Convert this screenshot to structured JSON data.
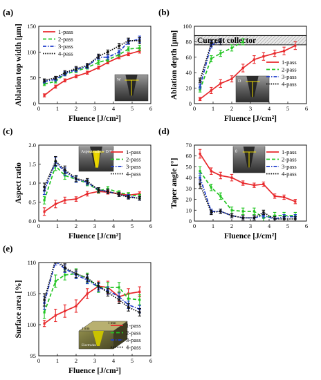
{
  "figure": {
    "panels": [
      {
        "key": "a",
        "label": "(a)"
      },
      {
        "key": "b",
        "label": "(b)"
      },
      {
        "key": "c",
        "label": "(c)"
      },
      {
        "key": "d",
        "label": "(d)"
      },
      {
        "key": "e",
        "label": "(e)"
      }
    ]
  },
  "colors": {
    "1-pass": "#e8282b",
    "2-pass": "#22c522",
    "3-pass": "#1f3ccc",
    "4-pass": "#111111"
  },
  "chart_data": [
    {
      "panel": "a",
      "label": "(a)",
      "type": "line",
      "xlabel": "Fluence [J/cm²]",
      "ylabel": "Ablation top width [μm]",
      "xlim": [
        0,
        6
      ],
      "ylim": [
        0,
        150
      ],
      "xticks": [
        0,
        1,
        2,
        3,
        4,
        5,
        6
      ],
      "yticks": [
        0,
        50,
        100,
        150
      ],
      "legend": "top-left",
      "grid": false,
      "inset": {
        "type": "micrograph",
        "annotation": "W"
      },
      "series": [
        {
          "name": "1-pass",
          "x": [
            0.3,
            0.9,
            1.4,
            2.0,
            2.6,
            3.2,
            3.7,
            4.3,
            4.8,
            5.4
          ],
          "y": [
            16,
            33,
            45,
            53,
            60,
            70,
            80,
            90,
            96,
            102
          ],
          "err": [
            3,
            3,
            3,
            3,
            3,
            3,
            3,
            3,
            3,
            4
          ]
        },
        {
          "name": "2-pass",
          "x": [
            0.3,
            0.9,
            1.4,
            2.0,
            2.6,
            3.2,
            3.7,
            4.3,
            4.8,
            5.4
          ],
          "y": [
            38,
            43,
            57,
            63,
            70,
            80,
            85,
            95,
            106,
            108
          ],
          "err": [
            3,
            3,
            3,
            3,
            3,
            4,
            4,
            4,
            4,
            5
          ]
        },
        {
          "name": "3-pass",
          "x": [
            0.3,
            0.9,
            1.4,
            2.0,
            2.6,
            3.2,
            3.7,
            4.3,
            4.8,
            5.4
          ],
          "y": [
            43,
            47,
            58,
            66,
            72,
            90,
            90,
            100,
            120,
            125
          ],
          "err": [
            3,
            3,
            4,
            4,
            4,
            4,
            4,
            4,
            5,
            6
          ]
        },
        {
          "name": "4-pass",
          "x": [
            0.3,
            0.9,
            1.4,
            2.0,
            2.6,
            3.2,
            3.7,
            4.3,
            4.8,
            5.4
          ],
          "y": [
            45,
            50,
            60,
            68,
            74,
            92,
            100,
            112,
            122,
            122
          ],
          "err": [
            3,
            3,
            4,
            4,
            4,
            4,
            4,
            5,
            5,
            6
          ]
        }
      ]
    },
    {
      "panel": "b",
      "label": "(b)",
      "type": "line",
      "xlabel": "Fluence [J/cm²]",
      "ylabel": "Ablation depth [μm]",
      "xlim": [
        0,
        6
      ],
      "ylim": [
        0,
        100
      ],
      "xticks": [
        0,
        1,
        2,
        3,
        4,
        5,
        6
      ],
      "yticks": [
        0,
        20,
        40,
        60,
        80,
        100
      ],
      "legend": "right",
      "grid": false,
      "annotation": {
        "text": "Current collector",
        "y_from": 76,
        "y_to": 88
      },
      "inset": {
        "type": "micrograph",
        "annotation": "D"
      },
      "series": [
        {
          "name": "1-pass",
          "x": [
            0.3,
            0.9,
            1.4,
            2.0,
            2.6,
            3.2,
            3.7,
            4.3,
            4.8,
            5.4
          ],
          "y": [
            6,
            17,
            26,
            32,
            46,
            57,
            61,
            65,
            68,
            75
          ],
          "err": [
            2,
            4,
            5,
            4,
            5,
            5,
            5,
            4,
            5,
            5
          ]
        },
        {
          "name": "2-pass",
          "x": [
            0.3,
            0.9,
            1.4,
            2.0,
            2.6
          ],
          "y": [
            18,
            58,
            65,
            72,
            80
          ],
          "err": [
            3,
            4,
            4,
            4,
            4
          ]
        },
        {
          "name": "3-pass",
          "x": [
            0.3,
            0.9,
            1.4
          ],
          "y": [
            22,
            76,
            80
          ],
          "err": [
            3,
            4,
            4
          ]
        },
        {
          "name": "4-pass",
          "x": [
            0.3,
            0.9,
            1.4
          ],
          "y": [
            30,
            78,
            80
          ],
          "err": [
            3,
            4,
            4
          ]
        }
      ]
    },
    {
      "panel": "c",
      "label": "(c)",
      "type": "line",
      "xlabel": "Fluence [J/cm²]",
      "ylabel": "Aspect ratio",
      "xlim": [
        0,
        6
      ],
      "ylim": [
        0.0,
        2.0
      ],
      "xticks": [
        0,
        1,
        2,
        3,
        4,
        5,
        6
      ],
      "yticks": [
        0.0,
        0.5,
        1.0,
        1.5,
        2.0
      ],
      "legend": "top-right",
      "grid": false,
      "inset": {
        "type": "micrograph",
        "annotation": "Aspect ratio = D/W"
      },
      "series": [
        {
          "name": "1-pass",
          "x": [
            0.3,
            0.9,
            1.4,
            2.0,
            2.6,
            3.2,
            3.7,
            4.3,
            4.8,
            5.4
          ],
          "y": [
            0.25,
            0.45,
            0.55,
            0.58,
            0.72,
            0.78,
            0.76,
            0.72,
            0.68,
            0.72
          ],
          "err": [
            0.1,
            0.1,
            0.08,
            0.06,
            0.06,
            0.05,
            0.05,
            0.05,
            0.05,
            0.05
          ]
        },
        {
          "name": "2-pass",
          "x": [
            0.3,
            0.9,
            1.4,
            2.0,
            2.6,
            3.2,
            3.7,
            4.3,
            4.8,
            5.4
          ],
          "y": [
            0.55,
            1.45,
            1.2,
            1.1,
            1.0,
            0.8,
            0.85,
            0.75,
            0.7,
            0.65
          ],
          "err": [
            0.1,
            0.12,
            0.1,
            0.08,
            0.07,
            0.06,
            0.06,
            0.05,
            0.05,
            0.05
          ]
        },
        {
          "name": "3-pass",
          "x": [
            0.3,
            0.9,
            1.4,
            2.0,
            2.6,
            3.2,
            3.7,
            4.3,
            4.8,
            5.4
          ],
          "y": [
            0.8,
            1.55,
            1.3,
            1.1,
            1.02,
            0.82,
            0.78,
            0.7,
            0.65,
            0.6
          ],
          "err": [
            0.1,
            0.12,
            0.1,
            0.08,
            0.07,
            0.06,
            0.06,
            0.05,
            0.05,
            0.05
          ]
        },
        {
          "name": "4-pass",
          "x": [
            0.3,
            0.9,
            1.4,
            2.0,
            2.6,
            3.2,
            3.7,
            4.3,
            4.8,
            5.4
          ],
          "y": [
            0.9,
            1.58,
            1.35,
            1.12,
            1.05,
            0.82,
            0.78,
            0.7,
            0.63,
            0.6
          ],
          "err": [
            0.1,
            0.12,
            0.1,
            0.08,
            0.07,
            0.06,
            0.06,
            0.05,
            0.05,
            0.05
          ]
        }
      ]
    },
    {
      "panel": "d",
      "label": "(d)",
      "type": "line",
      "xlabel": "Fluence [J/cm²]",
      "ylabel": "Taper angle [°]",
      "xlim": [
        0,
        6
      ],
      "ylim": [
        0,
        70
      ],
      "xticks": [
        0,
        1,
        2,
        3,
        4,
        5,
        6
      ],
      "yticks": [
        0,
        10,
        20,
        30,
        40,
        50,
        60,
        70
      ],
      "legend": "top-right",
      "grid": false,
      "inset": {
        "type": "micrograph",
        "annotation": "θ"
      },
      "series": [
        {
          "name": "1-pass",
          "x": [
            0.3,
            0.9,
            1.4,
            2.0,
            2.6,
            3.2,
            3.7,
            4.3,
            4.8,
            5.4
          ],
          "y": [
            62,
            46,
            42,
            40,
            35,
            33,
            34,
            23,
            22,
            18
          ],
          "err": [
            4,
            3,
            3,
            3,
            2,
            2,
            2,
            2,
            2,
            2
          ]
        },
        {
          "name": "2-pass",
          "x": [
            0.3,
            0.9,
            1.4,
            2.0,
            2.6,
            3.2,
            3.7,
            4.3,
            4.8,
            5.4
          ],
          "y": [
            46,
            31,
            23,
            10,
            9,
            9,
            3,
            5,
            5,
            5
          ],
          "err": [
            4,
            3,
            3,
            3,
            3,
            3,
            3,
            3,
            3,
            3
          ]
        },
        {
          "name": "3-pass",
          "x": [
            0.3,
            0.9,
            1.4,
            2.0,
            2.6,
            3.2,
            3.7,
            4.3,
            4.8,
            5.4
          ],
          "y": [
            40,
            9,
            9,
            5,
            3,
            3,
            5,
            2,
            4,
            4
          ],
          "err": [
            4,
            2,
            2,
            2,
            2,
            2,
            2,
            2,
            2,
            2
          ]
        },
        {
          "name": "4-pass",
          "x": [
            0.3,
            0.9,
            1.4,
            2.0,
            2.6,
            3.2,
            3.7,
            4.3,
            4.8,
            5.4
          ],
          "y": [
            34,
            8,
            9,
            5,
            3,
            3,
            8,
            2,
            2,
            2
          ],
          "err": [
            4,
            2,
            2,
            2,
            2,
            2,
            2,
            2,
            2,
            2
          ]
        }
      ]
    },
    {
      "panel": "e",
      "label": "(e)",
      "type": "line",
      "xlabel": "Fluence [J/cm²]",
      "ylabel": "Surface area [%]",
      "xlim": [
        0,
        6
      ],
      "ylim": [
        95,
        110
      ],
      "xticks": [
        0,
        1,
        2,
        3,
        4,
        5,
        6
      ],
      "yticks": [
        95,
        100,
        105,
        110
      ],
      "legend": "bottom-right",
      "grid": false,
      "inset": {
        "type": "schematic",
        "labels": [
          "1 mm",
          "1 mm",
          "Electrodes"
        ]
      },
      "series": [
        {
          "name": "1-pass",
          "x": [
            0.3,
            0.9,
            1.4,
            2.0,
            2.6,
            3.2,
            3.7,
            4.3,
            4.8,
            5.4
          ],
          "y": [
            100.2,
            101.5,
            102.2,
            103.0,
            105.0,
            106.2,
            106.0,
            104.5,
            105.0,
            105.3
          ],
          "err": [
            0.5,
            1.0,
            1.0,
            1.0,
            0.8,
            0.8,
            1.0,
            0.8,
            0.8,
            0.8
          ]
        },
        {
          "name": "2-pass",
          "x": [
            0.3,
            0.9,
            1.4,
            2.0,
            2.6,
            3.2,
            3.7,
            4.3,
            4.8,
            5.4
          ],
          "y": [
            102.0,
            107.0,
            108.0,
            108.2,
            107.5,
            106.0,
            106.0,
            106.0,
            104.2,
            104.0
          ],
          "err": [
            1.0,
            1.0,
            0.8,
            0.8,
            0.8,
            0.8,
            0.8,
            0.8,
            0.8,
            0.8
          ]
        },
        {
          "name": "3-pass",
          "x": [
            0.3,
            0.9,
            1.4,
            2.0,
            2.6,
            3.2,
            3.7,
            4.3,
            4.8,
            5.4
          ],
          "y": [
            103.5,
            110.2,
            109.0,
            108.0,
            107.2,
            106.0,
            105.5,
            104.5,
            103.2,
            102.5
          ],
          "err": [
            1.0,
            0.6,
            0.6,
            0.6,
            0.6,
            0.6,
            0.6,
            0.6,
            0.6,
            0.6
          ]
        },
        {
          "name": "4-pass",
          "x": [
            0.3,
            0.9,
            1.4,
            2.0,
            2.6,
            3.2,
            3.7,
            4.3,
            4.8,
            5.4
          ],
          "y": [
            104.0,
            110.5,
            109.2,
            108.2,
            107.5,
            106.2,
            105.2,
            104.0,
            102.8,
            102.0
          ],
          "err": [
            1.0,
            0.6,
            0.6,
            0.6,
            0.6,
            0.6,
            0.6,
            0.6,
            0.6,
            0.6
          ]
        }
      ]
    }
  ]
}
